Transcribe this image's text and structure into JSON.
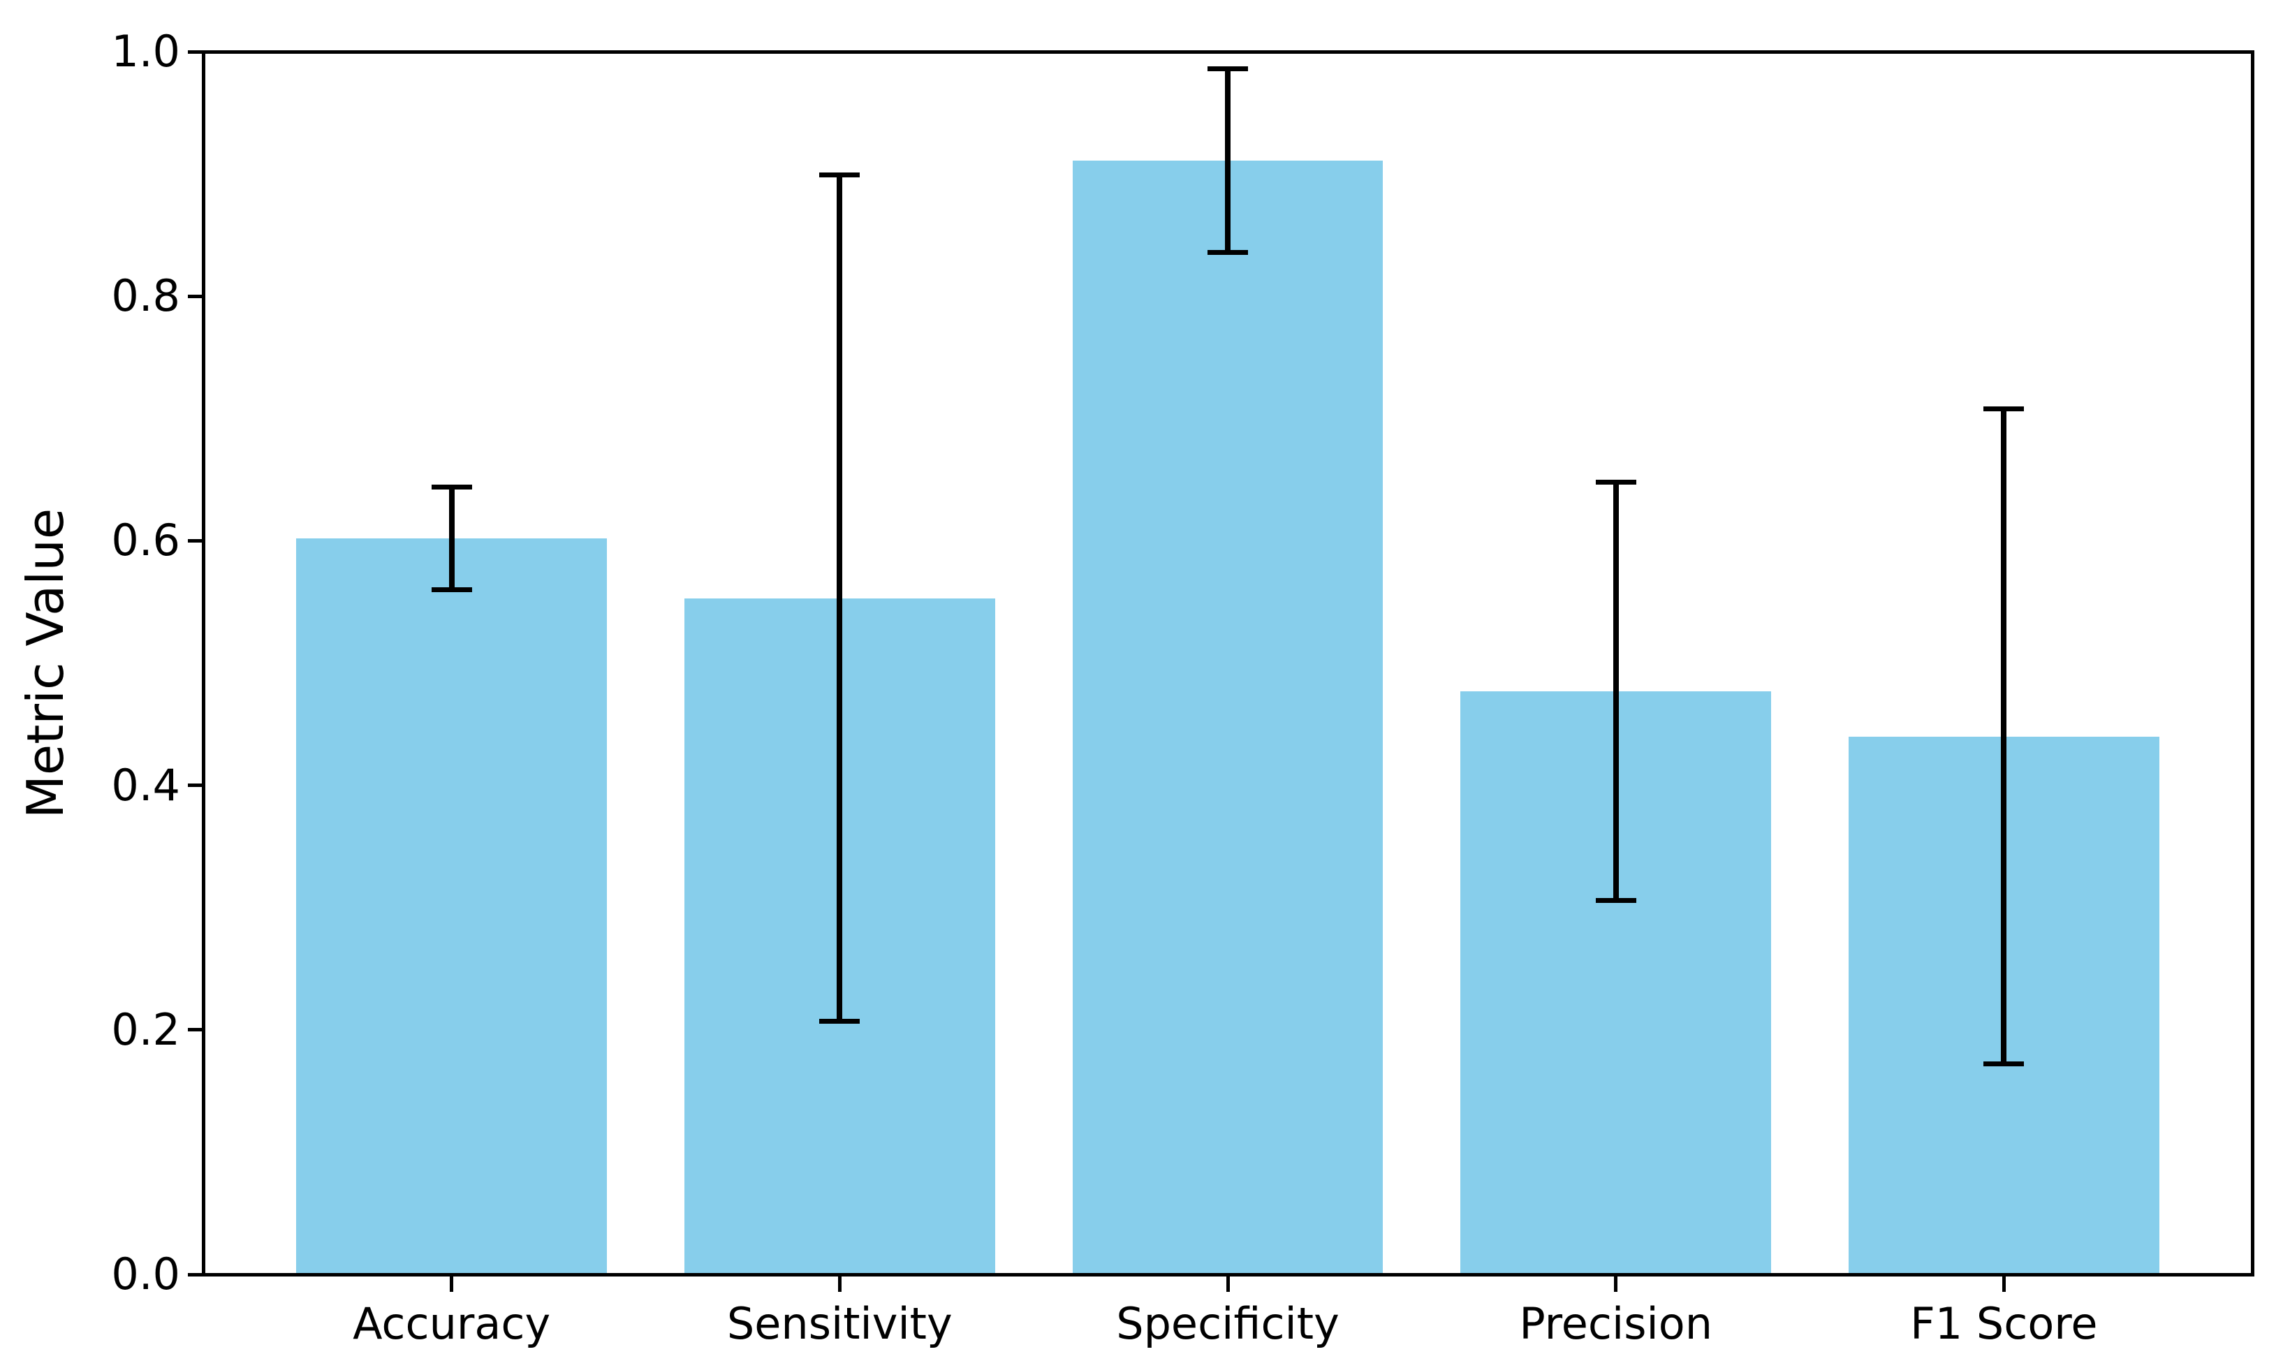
{
  "chart_data": {
    "type": "bar",
    "title": "",
    "categories": [
      "Accuracy",
      "Sensitivity",
      "Specificity",
      "Precision",
      "F1 Score"
    ],
    "values": [
      0.602,
      0.553,
      0.911,
      0.477,
      0.44
    ],
    "errors": [
      0.042,
      0.346,
      0.075,
      0.171,
      0.268
    ],
    "xlabel": "",
    "ylabel": "Metric Value",
    "ylim": [
      0.0,
      1.0
    ],
    "yticks": [
      0.0,
      0.2,
      0.4,
      0.6,
      0.8,
      1.0
    ],
    "ytick_labels": [
      "0.0",
      "0.2",
      "0.4",
      "0.6",
      "0.8",
      "1.0"
    ],
    "grid": false,
    "legend_position": "none",
    "bar_color": "#87CEEB",
    "error_bar_color": "#000000",
    "axis_color": "#000000",
    "text_color": "#000000"
  }
}
